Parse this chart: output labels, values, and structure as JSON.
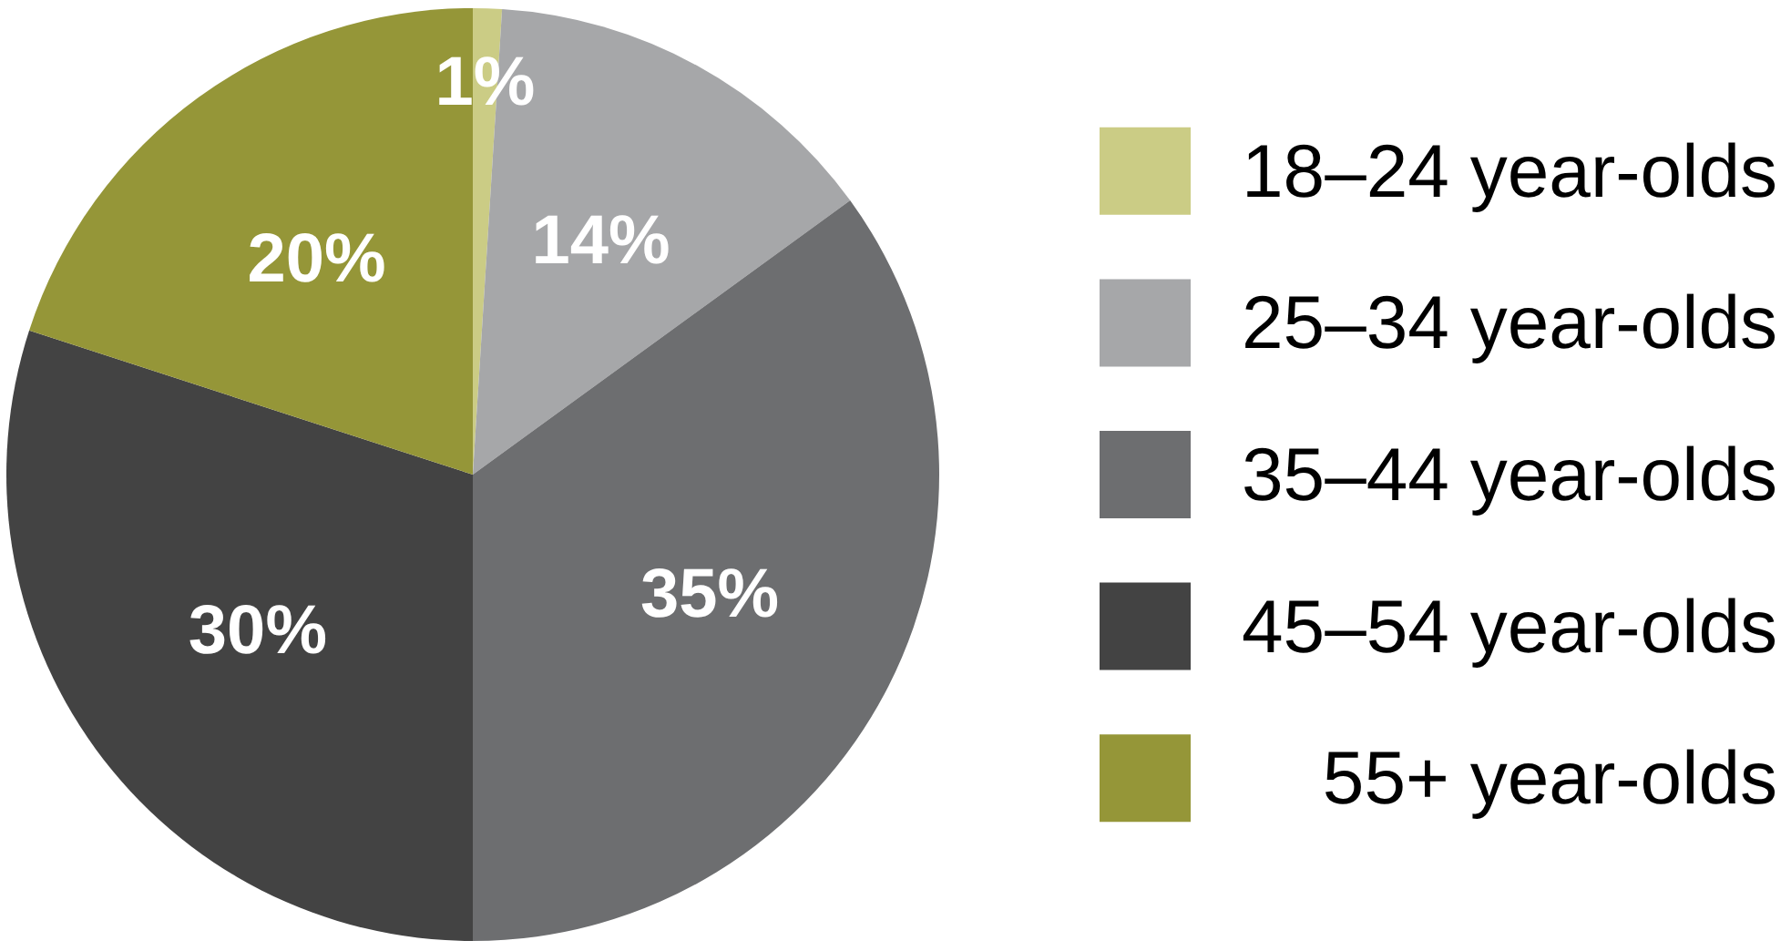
{
  "chart_data": {
    "type": "pie",
    "categories": [
      "18–24 year-olds",
      "25–34 year-olds",
      "35–44 year-olds",
      "45–54 year-olds",
      "55+ year-olds"
    ],
    "values": [
      1,
      14,
      35,
      30,
      20
    ],
    "colors": [
      "#cbcc85",
      "#a6a7a9",
      "#6d6e70",
      "#434343",
      "#959638"
    ],
    "value_labels": [
      "1%",
      "14%",
      "35%",
      "30%",
      "20%"
    ],
    "legend": "right"
  }
}
